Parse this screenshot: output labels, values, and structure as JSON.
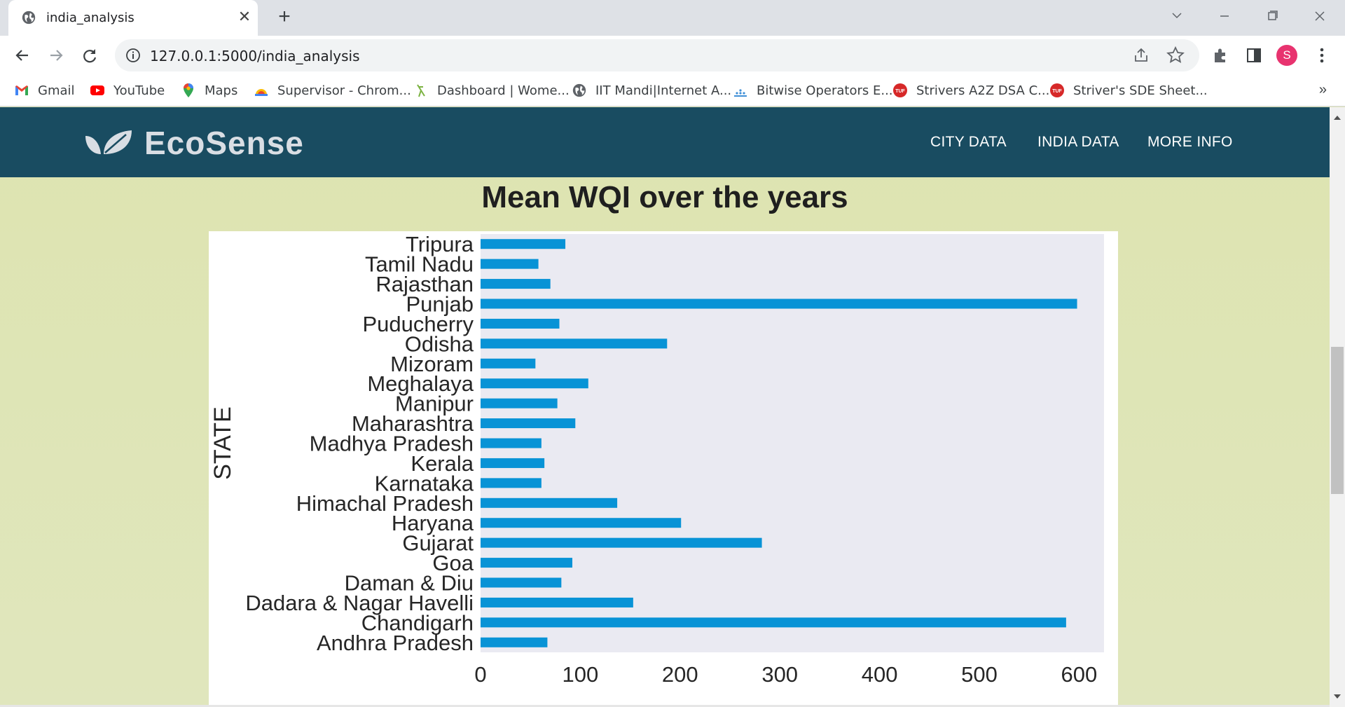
{
  "browser": {
    "tab_title": "india_analysis",
    "tab_close": "✕",
    "new_tab": "+",
    "url": "127.0.0.1:5000/india_analysis",
    "avatar_letter": "S",
    "bookmarks": [
      {
        "label": "Gmail",
        "icon": "gmail-icon"
      },
      {
        "label": "YouTube",
        "icon": "youtube-icon"
      },
      {
        "label": "Maps",
        "icon": "maps-icon"
      },
      {
        "label": "Supervisor - Chrom...",
        "icon": "supervisor-icon"
      },
      {
        "label": "Dashboard | Wome...",
        "icon": "dashboard-icon"
      },
      {
        "label": "IIT Mandi|Internet A...",
        "icon": "globe-icon"
      },
      {
        "label": "Bitwise Operators E...",
        "icon": "bitwise-icon"
      },
      {
        "label": "Strivers A2Z DSA C...",
        "icon": "tuf-icon"
      },
      {
        "label": "Striver's SDE Sheet...",
        "icon": "tuf-icon"
      }
    ],
    "bookmarks_more": "»",
    "tuf_badge": "TUF"
  },
  "site": {
    "brand": "EcoSense",
    "nav": [
      "CITY DATA",
      "INDIA DATA",
      "MORE INFO"
    ],
    "colors": {
      "navbar": "#194c61",
      "background": "#dfe5b7",
      "bar": "#0893d6",
      "plot_bg": "#eaeaf2"
    }
  },
  "page": {
    "title": "Mean WQI over the years"
  },
  "chart_data": {
    "type": "bar",
    "orientation": "horizontal",
    "title": "",
    "ylabel": "STATE",
    "xlabel": "",
    "xlim": [
      0,
      625
    ],
    "x_ticks": [
      0,
      100,
      200,
      300,
      400,
      500,
      600
    ],
    "categories": [
      "Tripura",
      "Tamil Nadu",
      "Rajasthan",
      "Punjab",
      "Puducherry",
      "Odisha",
      "Mizoram",
      "Meghalaya",
      "Manipur",
      "Maharashtra",
      "Madhya Pradesh",
      "Kerala",
      "Karnataka",
      "Himachal Pradesh",
      "Haryana",
      "Gujarat",
      "Goa",
      "Daman & Diu",
      "Dadara & Nagar Havelli",
      "Chandigarh",
      "Andhra Pradesh"
    ],
    "values": [
      85,
      58,
      70,
      598,
      79,
      187,
      55,
      108,
      77,
      95,
      61,
      64,
      61,
      137,
      201,
      282,
      92,
      81,
      153,
      587,
      67
    ],
    "grid": false
  }
}
